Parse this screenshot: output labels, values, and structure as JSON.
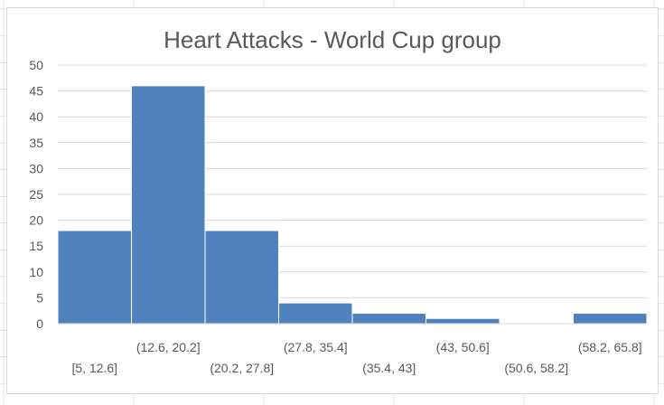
{
  "chart_data": {
    "type": "bar",
    "title": "Heart Attacks - World Cup group",
    "xlabel": "",
    "ylabel": "",
    "ylim": [
      0,
      50
    ],
    "yticks": [
      0,
      5,
      10,
      15,
      20,
      25,
      30,
      35,
      40,
      45,
      50
    ],
    "categories": [
      "[5, 12.6]",
      "(12.6, 20.2]",
      "(20.2, 27.8]",
      "(27.8, 35.4]",
      "(35.4, 43]",
      "(43, 50.6]",
      "(50.6, 58.2]",
      "(58.2, 65.8]"
    ],
    "values": [
      18,
      46,
      18,
      4,
      2,
      1,
      0,
      2
    ],
    "grid": true,
    "legend": "none",
    "bar_color": "#4f81bd"
  }
}
